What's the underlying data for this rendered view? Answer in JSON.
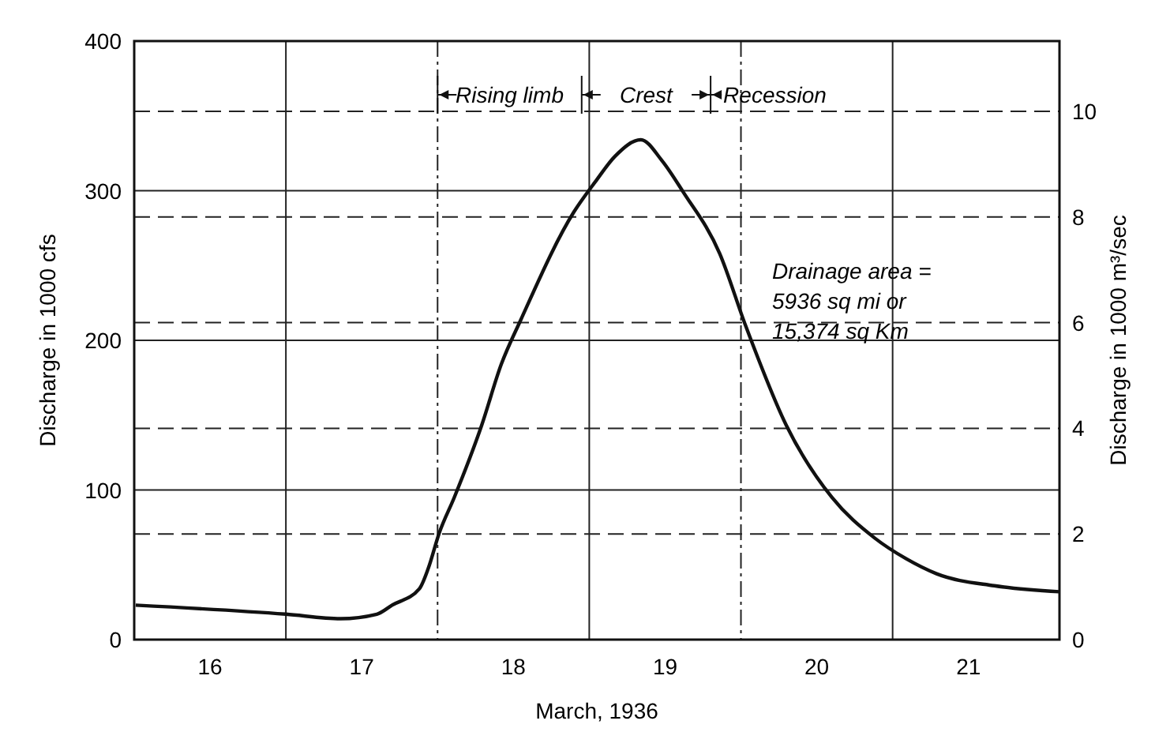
{
  "chart_data": {
    "type": "line",
    "xlabel": "March, 1936",
    "ylabel": "Discharge in 1000 cfs",
    "y2label": "Discharge in 1000 m³/sec",
    "xlim": [
      15.5,
      21.6
    ],
    "xticks": [
      16,
      17,
      18,
      19,
      20,
      21,
      {
        "value": 16.5,
        "label": null
      },
      {
        "value": 17.5,
        "label": null
      },
      {
        "value": 18.5,
        "label": null
      },
      {
        "value": 19.5,
        "label": null
      },
      {
        "value": 20.5,
        "label": null
      }
    ],
    "ylim": [
      0,
      400
    ],
    "yticks": [
      0,
      100,
      200,
      300,
      400
    ],
    "y2lim": [
      0,
      11.33
    ],
    "y2ticks": [
      0,
      2,
      4,
      6,
      8,
      10
    ],
    "grid": true,
    "marker": "none",
    "line_style": "solid",
    "series": [
      {
        "color": "#111111",
        "x": [
          15.51,
          16.5,
          16.86,
          17.1,
          17.2,
          17.38,
          17.44,
          17.51,
          17.61,
          17.79,
          17.92,
          18.05,
          18.4,
          18.54,
          18.67,
          18.84,
          18.98,
          19.12,
          19.36,
          19.53,
          19.8,
          20.1,
          20.38,
          20.59,
          20.79,
          21.17,
          21.6
        ],
        "values": [
          23,
          17,
          14,
          17,
          23,
          34,
          48,
          71,
          95,
          143,
          184,
          214,
          286,
          306,
          323,
          334,
          320,
          299,
          258,
          210,
          143,
          95,
          68,
          54,
          44,
          36,
          32
        ]
      }
    ],
    "annotations": [
      "Rising limb",
      "Crest",
      "Recession",
      "Drainage area = 5936 sq mi or 15,374 sq Km"
    ]
  }
}
